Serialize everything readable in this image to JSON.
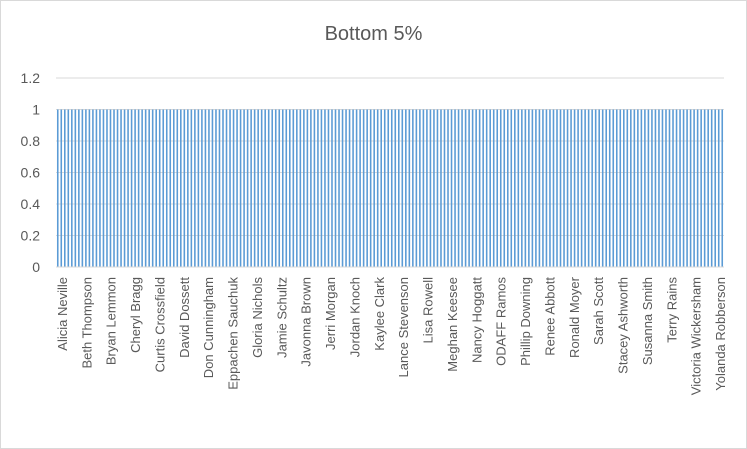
{
  "chart_data": {
    "type": "bar",
    "title": "Bottom 5%",
    "xlabel": "",
    "ylabel": "",
    "ylim": [
      0,
      1.2
    ],
    "yticks": [
      "0",
      "0.2",
      "0.4",
      "0.6",
      "0.8",
      "1",
      "1.2"
    ],
    "grid": true,
    "legend": "none",
    "bar_color": "#5b9bd5",
    "grid_color": "#d9d9d9",
    "num_bars": 190,
    "bar_value": 1,
    "visible_category_labels": [
      "Alicia Neville",
      "Beth Thompson",
      "Bryan Lemmon",
      "Cheryl Bragg",
      "Curtis Crossfield",
      "David Dossett",
      "Don Cunningham",
      "Eppachen Sauchuk",
      "Gloria Nichols",
      "Jamie Schultz",
      "Javonna Brown",
      "Jerri Morgan",
      "Jordan Knoch",
      "Kaylee Clark",
      "Lance Stevenson",
      "Lisa Rowell",
      "Meghan Keesee",
      "Nancy Hoggatt",
      "ODAFF Ramos",
      "Phillip Downing",
      "Renee Abbott",
      "Ronald Moyer",
      "Sarah Scott",
      "Stacey Ashworth",
      "Susanna Smith",
      "Terry Rains",
      "Victoria Wickersham",
      "Yolanda Robberson"
    ]
  }
}
